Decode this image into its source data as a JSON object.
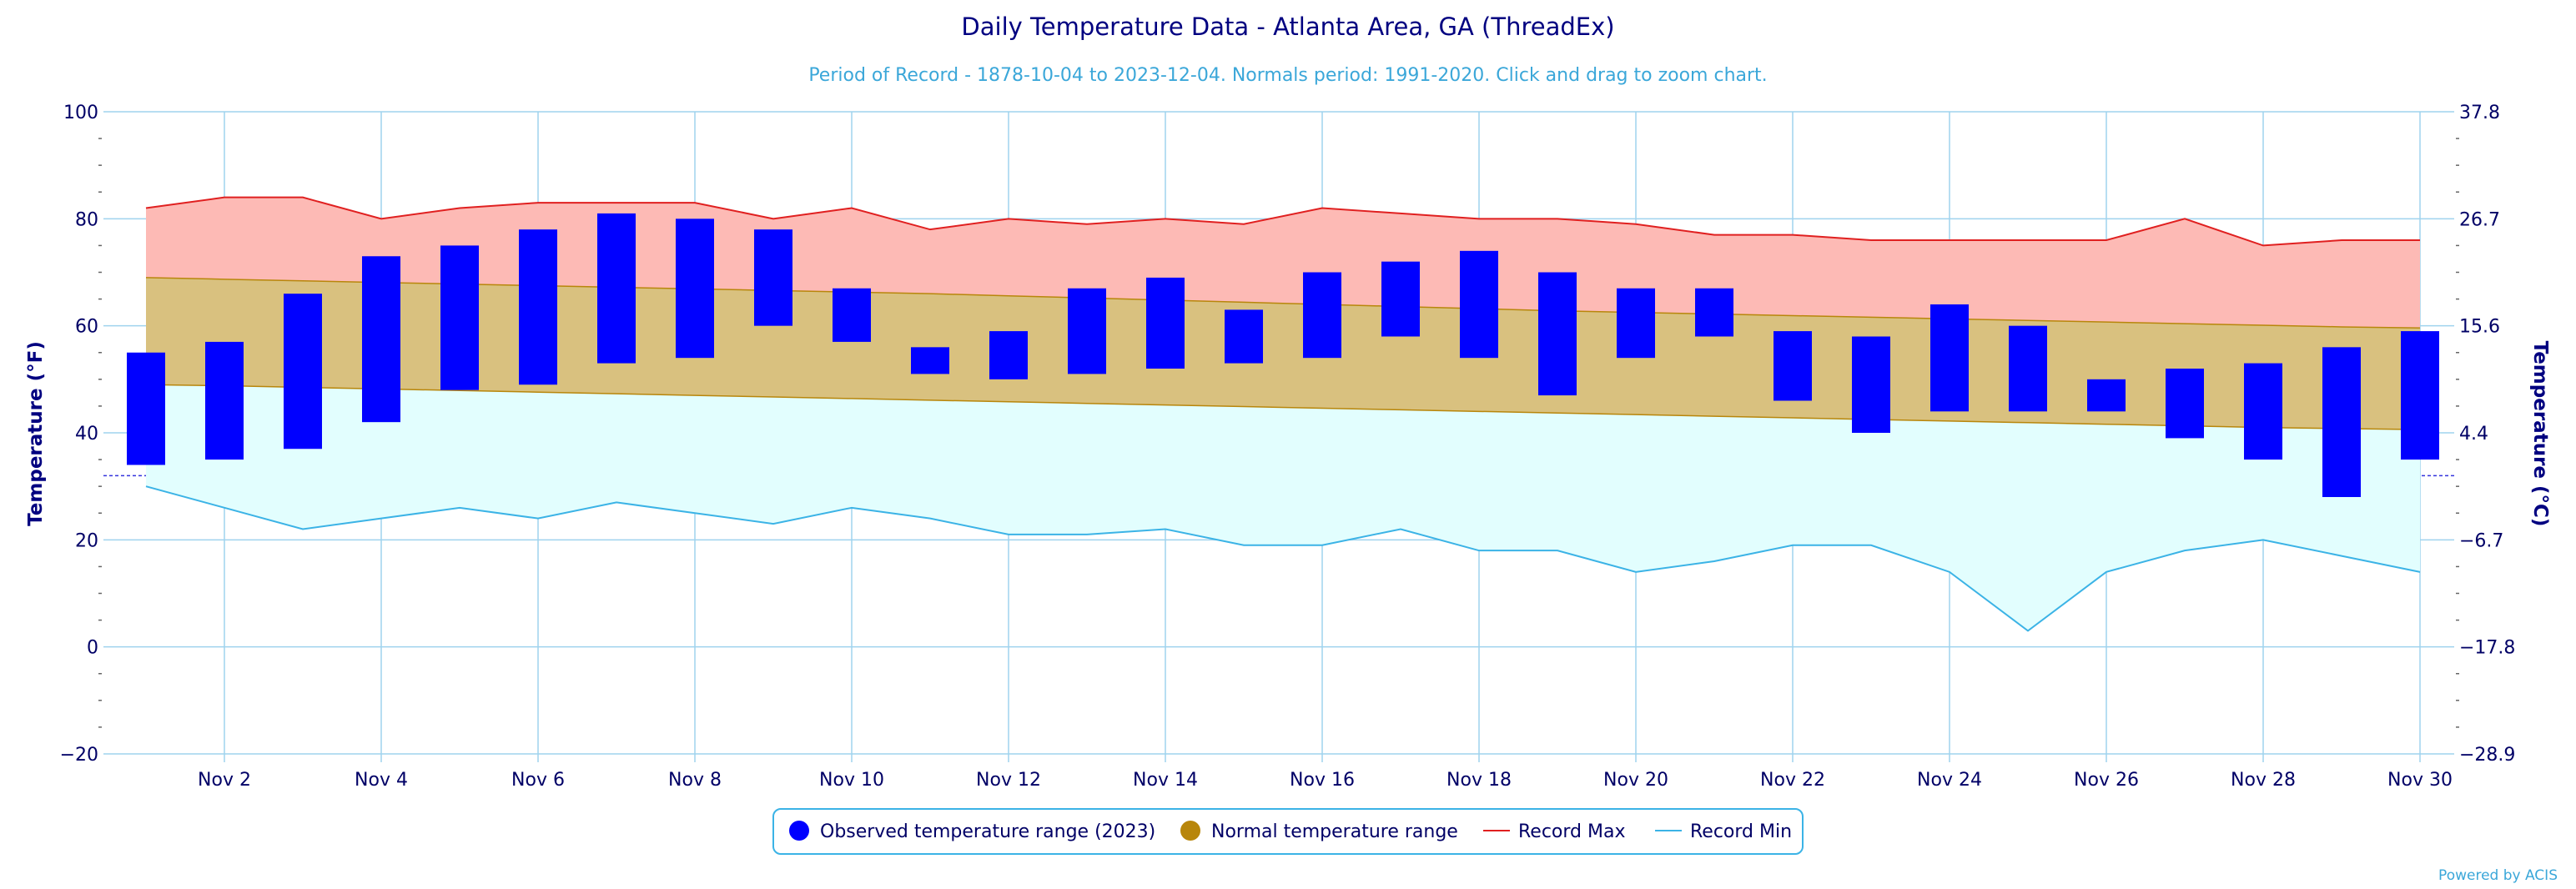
{
  "title": "Daily Temperature Data - Atlanta Area, GA (ThreadEx)",
  "subtitle": "Period of Record - 1878-10-04 to 2023-12-04. Normals period: 1991-2020. Click and drag to zoom chart.",
  "credits": "Powered by ACIS",
  "colors": {
    "observed": "#0000FF",
    "normal_fill": "#D9C17F",
    "normal_line": "#B8860B",
    "record_max_fill": "#FDBAB5",
    "record_max_line": "#E02020",
    "record_min_fill": "#E2FEFE",
    "record_min_line": "#3BB3E6",
    "grid": "#9FD3EE",
    "freeze_line": "#3333DD"
  },
  "legend": {
    "observed": "Observed temperature range (2023)",
    "normal": "Normal temperature range",
    "record_max": "Record Max",
    "record_min": "Record Min"
  },
  "chart_data": {
    "type": "bar",
    "title": "Daily Temperature Data - Atlanta Area, GA (ThreadEx)",
    "ylabel": "Temperature (°F)",
    "ylabel_right": "Temperature (°C)",
    "ylim": [
      -20,
      100
    ],
    "yticks": [
      "100",
      "80",
      "60",
      "40",
      "20",
      "0",
      "−20"
    ],
    "yticks_right": [
      "37.8",
      "26.7",
      "15.6",
      "4.4",
      "−6.7",
      "−17.8",
      "−28.9"
    ],
    "xticks": [
      "Nov 2",
      "Nov 4",
      "Nov 6",
      "Nov 8",
      "Nov 10",
      "Nov 12",
      "Nov 14",
      "Nov 16",
      "Nov 18",
      "Nov 20",
      "Nov 22",
      "Nov 24",
      "Nov 26",
      "Nov 28",
      "Nov 30"
    ],
    "xtick_days": [
      2,
      4,
      6,
      8,
      10,
      12,
      14,
      16,
      18,
      20,
      22,
      24,
      26,
      28,
      30
    ],
    "days": [
      1,
      2,
      3,
      4,
      5,
      6,
      7,
      8,
      9,
      10,
      11,
      12,
      13,
      14,
      15,
      16,
      17,
      18,
      19,
      20,
      21,
      22,
      23,
      24,
      25,
      26,
      27,
      28,
      29,
      30
    ],
    "freeze_line": 32,
    "grid": true,
    "legend_position": "bottom-center",
    "series": [
      {
        "name": "Observed temperature range (2023)",
        "type": "columnrange",
        "low": [
          34,
          35,
          37,
          42,
          48,
          49,
          53,
          54,
          60,
          57,
          51,
          50,
          51,
          52,
          53,
          54,
          58,
          54,
          47,
          54,
          58,
          46,
          40,
          44,
          44,
          44,
          39,
          35,
          28,
          35
        ],
        "high": [
          55,
          57,
          66,
          73,
          75,
          78,
          81,
          80,
          78,
          67,
          56,
          59,
          67,
          69,
          63,
          70,
          72,
          74,
          70,
          67,
          67,
          59,
          58,
          64,
          60,
          50,
          52,
          53,
          56,
          59
        ]
      },
      {
        "name": "Normal temperature range",
        "type": "arearange",
        "low": [
          49,
          48.8,
          48.5,
          48.2,
          47.9,
          47.6,
          47.3,
          47.0,
          46.7,
          46.4,
          46.1,
          45.8,
          45.5,
          45.2,
          44.9,
          44.6,
          44.3,
          44.0,
          43.7,
          43.4,
          43.1,
          42.8,
          42.5,
          42.2,
          41.9,
          41.6,
          41.3,
          41.0,
          40.8,
          40.6
        ],
        "high": [
          69,
          68.7,
          68.4,
          68.1,
          67.8,
          67.5,
          67.2,
          66.9,
          66.6,
          66.3,
          66.0,
          65.6,
          65.2,
          64.8,
          64.4,
          64.0,
          63.6,
          63.2,
          62.8,
          62.5,
          62.2,
          61.9,
          61.6,
          61.3,
          61.0,
          60.7,
          60.4,
          60.1,
          59.8,
          59.6
        ]
      },
      {
        "name": "Record Max",
        "type": "line",
        "values": [
          82,
          84,
          84,
          80,
          82,
          83,
          83,
          83,
          80,
          82,
          78,
          80,
          79,
          80,
          79,
          82,
          81,
          80,
          80,
          79,
          77,
          77,
          76,
          76,
          76,
          76,
          80,
          75,
          76,
          76
        ]
      },
      {
        "name": "Record Min",
        "type": "line",
        "values": [
          30,
          26,
          22,
          24,
          26,
          24,
          27,
          25,
          23,
          26,
          24,
          21,
          21,
          22,
          19,
          19,
          22,
          18,
          18,
          14,
          16,
          19,
          19,
          14,
          3,
          14,
          18,
          20,
          17,
          14
        ]
      }
    ]
  }
}
